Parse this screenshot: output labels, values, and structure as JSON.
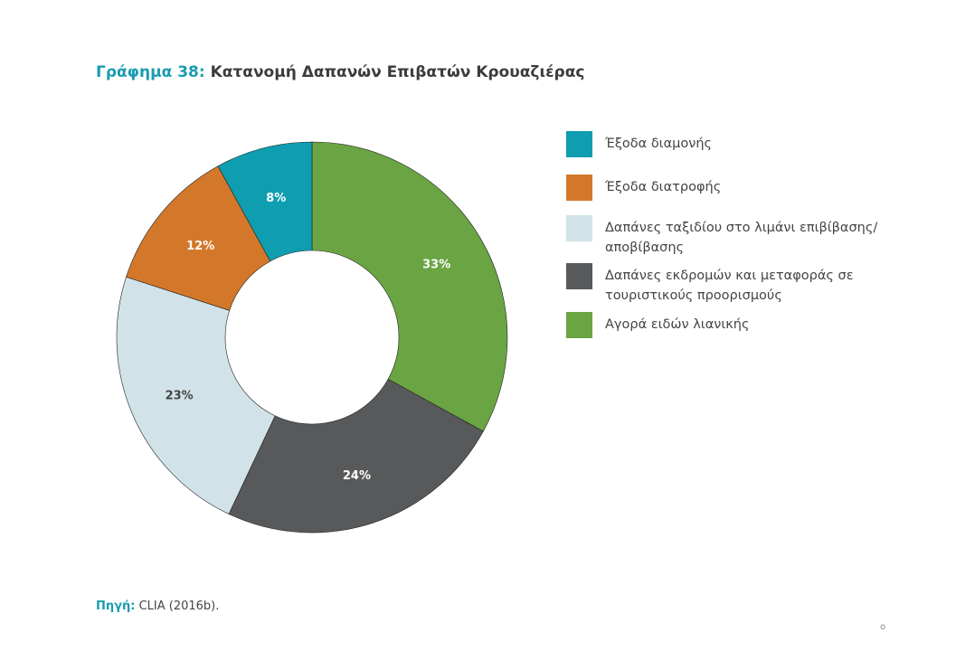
{
  "title": {
    "prefix": "Γράφημα 38:",
    "text": "Κατανομή Δαπανών Επιβατών Κρουαζιέρας"
  },
  "chart_data": {
    "type": "pie",
    "title": "Κατανομή Δαπανών Επιβατών Κρουαζιέρας",
    "style": "donut",
    "legend_position": "right",
    "categories": [
      "Αγορά ειδών λιανικής",
      "Δαπάνες εκδρομών και μεταφοράς σε τουριστικούς προορισμούς",
      "Δαπάνες ταξιδίου στο λιμάνι επιβίβασης/ αποβίβασης",
      "Έξοδα διατροφής",
      "Έξοδα διαμονής"
    ],
    "values": [
      33,
      24,
      23,
      12,
      8
    ],
    "labels": [
      "33%",
      "24%",
      "23%",
      "12%",
      "8%"
    ],
    "colors": [
      "#6aa443",
      "#58595b",
      "#d1e3e8",
      "#d3782a",
      "#0f9db0"
    ]
  },
  "legend": [
    {
      "label": "Έξοδα διαμονής",
      "color": "#0f9db0"
    },
    {
      "label": "Έξοδα διατροφής",
      "color": "#d3782a"
    },
    {
      "label": "Δαπάνες ταξιδίου στο λιμάνι επιβίβασης/ αποβίβασης",
      "color": "#d1e3e8"
    },
    {
      "label": "Δαπάνες εκδρομών και μεταφοράς σε τουριστικούς προορισμούς",
      "color": "#58595b"
    },
    {
      "label": "Αγορά ειδών λιανικής",
      "color": "#6aa443"
    }
  ],
  "source": {
    "prefix": "Πηγή:",
    "text": "CLIA (2016b)."
  },
  "page_number": "ο"
}
